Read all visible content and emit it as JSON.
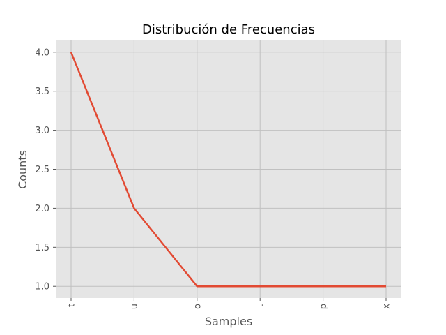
{
  "chart_data": {
    "type": "line",
    "title": "Distribución de Frecuencias",
    "xlabel": "Samples",
    "ylabel": "Counts",
    "categories": [
      "t",
      "u",
      "o",
      ".",
      "p",
      "x"
    ],
    "series": [
      {
        "values": [
          4,
          2,
          1,
          1,
          1,
          1
        ]
      }
    ],
    "ylim": [
      0.85,
      4.15
    ],
    "yticks": [
      "1.0",
      "1.5",
      "2.0",
      "2.5",
      "3.0",
      "3.5",
      "4.0"
    ],
    "grid": true,
    "colors": {
      "background": "#E5E5E5",
      "grid": "#C0C0C0",
      "line": "#E24A33"
    }
  }
}
